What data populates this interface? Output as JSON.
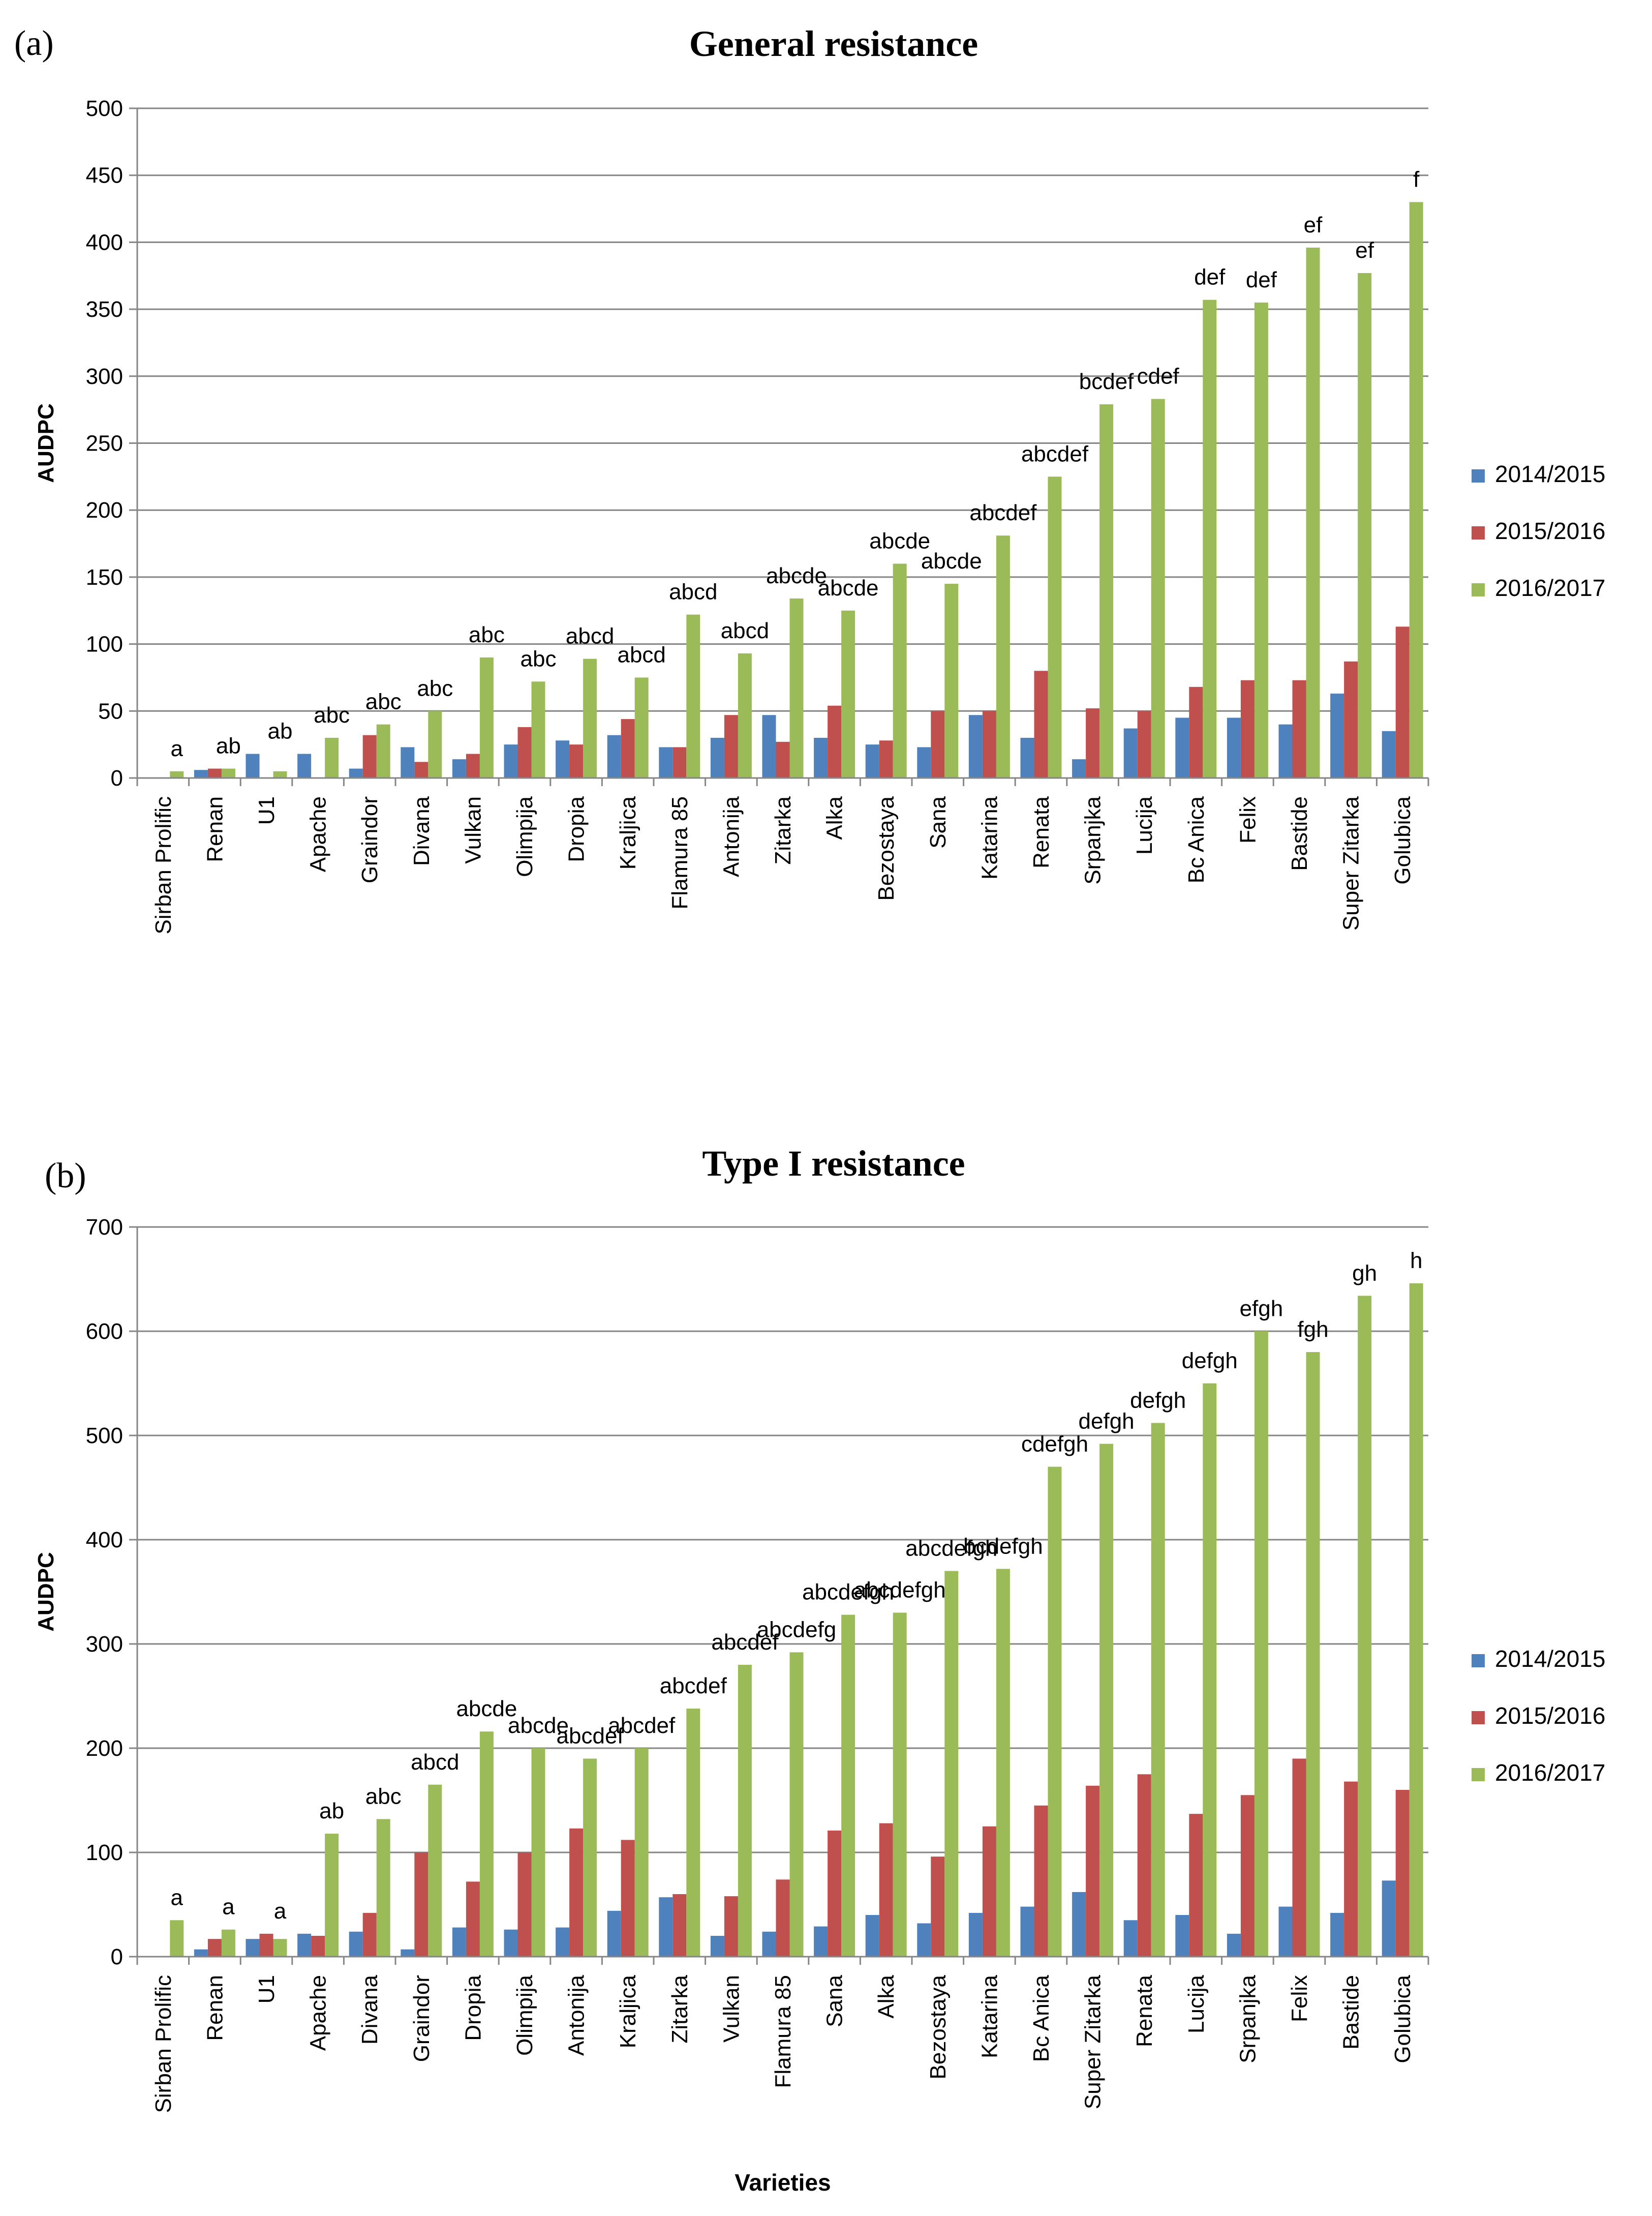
{
  "colors": {
    "s2014": "#4f81bd",
    "s2015": "#c0504d",
    "s2016": "#9bbb59",
    "grid": "#868686",
    "axis": "#868686",
    "text": "#000000"
  },
  "chart_data": [
    {
      "type": "bar",
      "panel": "(a)",
      "title": "General resistance",
      "xlabel": "",
      "ylabel": "AUDPC",
      "ylim": [
        0,
        500
      ],
      "yticks": [
        0,
        50,
        100,
        150,
        200,
        250,
        300,
        350,
        400,
        450,
        500
      ],
      "legend_position": "right",
      "categories": [
        "Sirban Prolific",
        "Renan",
        "U1",
        "Apache",
        "Graindor",
        "Divana",
        "Vulkan",
        "Olimpija",
        "Dropia",
        "Kraljica",
        "Flamura 85",
        "Antonija",
        "Zitarka",
        "Alka",
        "Bezostaya",
        "Sana",
        "Katarina",
        "Renata",
        "Srpanjka",
        "Lucija",
        "Bc Anica",
        "Felix",
        "Bastide",
        "Super Zitarka",
        "Golubica"
      ],
      "series": [
        {
          "name": "2014/2015",
          "color_key": "s2014",
          "values": [
            0,
            6,
            18,
            18,
            7,
            23,
            14,
            25,
            28,
            32,
            23,
            30,
            47,
            30,
            25,
            23,
            47,
            30,
            14,
            37,
            45,
            45,
            40,
            63,
            35
          ]
        },
        {
          "name": "2015/2016",
          "color_key": "s2015",
          "values": [
            0,
            7,
            0,
            0,
            32,
            12,
            18,
            38,
            25,
            44,
            23,
            47,
            27,
            54,
            28,
            50,
            50,
            80,
            52,
            50,
            68,
            73,
            73,
            87,
            113
          ]
        },
        {
          "name": "2016/2017",
          "color_key": "s2016",
          "values": [
            5,
            7,
            5,
            30,
            40,
            50,
            90,
            72,
            89,
            75,
            122,
            93,
            134,
            125,
            160,
            145,
            181,
            225,
            279,
            283,
            357,
            355,
            396,
            377,
            430
          ]
        }
      ],
      "annotations": [
        "a",
        "ab",
        "ab",
        "abc",
        "abc",
        "abc",
        "abc",
        "abc",
        "abcd",
        "abcd",
        "abcd",
        "abcd",
        "abcde",
        "abcde",
        "abcde",
        "abcde",
        "abcdef",
        "abcdef",
        "bcdef",
        "cdef",
        "def",
        "def",
        "ef",
        "ef",
        "f"
      ]
    },
    {
      "type": "bar",
      "panel": "(b)",
      "title": "Type I resistance",
      "xlabel": "Varieties",
      "ylabel": "AUDPC",
      "ylim": [
        0,
        700
      ],
      "yticks": [
        0,
        100,
        200,
        300,
        400,
        500,
        600,
        700
      ],
      "legend_position": "right",
      "categories": [
        "Sirban Prolific",
        "Renan",
        "U1",
        "Apache",
        "Divana",
        "Graindor",
        "Dropia",
        "Olimpija",
        "Antonija",
        "Kraljica",
        "Zitarka",
        "Vulkan",
        "Flamura 85",
        "Sana",
        "Alka",
        "Bezostaya",
        "Katarina",
        "Bc Anica",
        "Super Zitarka",
        "Renata",
        "Lucija",
        "Srpanjka",
        "Felix",
        "Bastide",
        "Golubica"
      ],
      "series": [
        {
          "name": "2014/2015",
          "color_key": "s2014",
          "values": [
            0,
            7,
            17,
            22,
            24,
            7,
            28,
            26,
            28,
            44,
            57,
            20,
            24,
            29,
            40,
            32,
            42,
            48,
            62,
            35,
            40,
            22,
            48,
            42,
            73
          ]
        },
        {
          "name": "2015/2016",
          "color_key": "s2015",
          "values": [
            0,
            17,
            22,
            20,
            42,
            100,
            72,
            100,
            123,
            112,
            60,
            58,
            74,
            121,
            128,
            96,
            125,
            145,
            164,
            175,
            137,
            155,
            190,
            168,
            160
          ]
        },
        {
          "name": "2016/2017",
          "color_key": "s2016",
          "values": [
            35,
            26,
            17,
            118,
            132,
            165,
            216,
            200,
            190,
            200,
            238,
            280,
            292,
            328,
            330,
            370,
            372,
            470,
            492,
            512,
            550,
            600,
            580,
            634,
            646
          ]
        }
      ],
      "annotations": [
        "a",
        "a",
        "a",
        "ab",
        "abc",
        "abcd",
        "abcde",
        "abcde",
        "abcdef",
        "abcdef",
        "abcdef",
        "abcdef",
        "abcdefg",
        "abcdefgh",
        "abcdefgh",
        "abcdefgh",
        "bcdefgh",
        "cdefgh",
        "defgh",
        "defgh",
        "defgh",
        "efgh",
        "fgh",
        "gh",
        "h"
      ]
    }
  ]
}
